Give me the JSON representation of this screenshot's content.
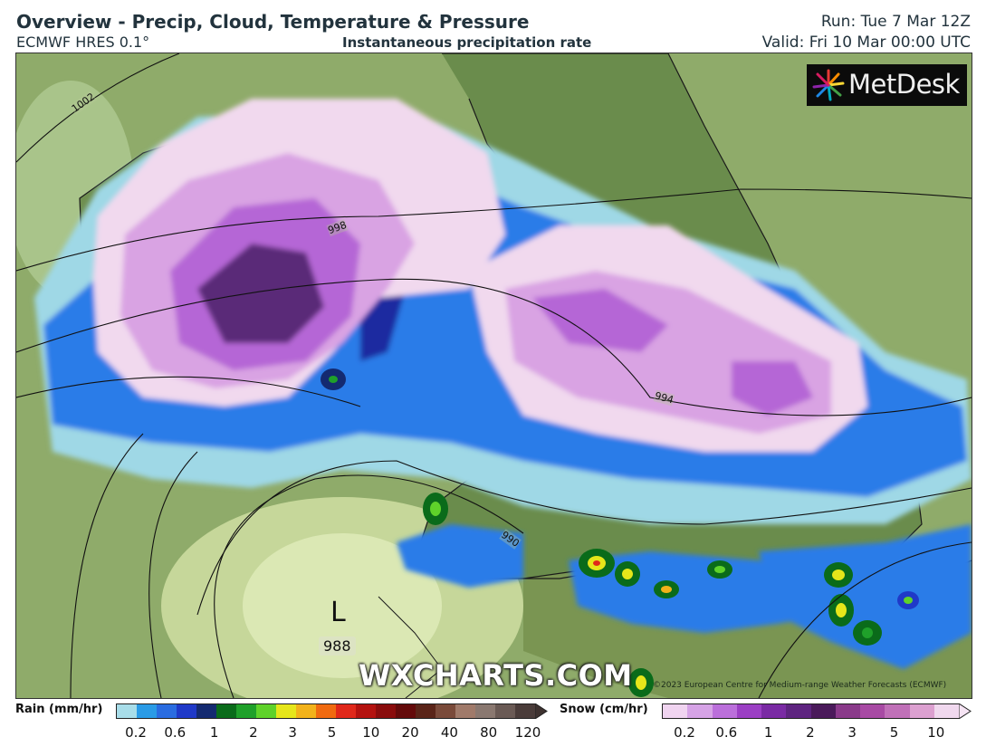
{
  "header": {
    "title": "Overview - Precip, Cloud, Temperature & Pressure",
    "model": "ECMWF HRES 0.1°",
    "field": "Instantaneous precipitation rate",
    "run": "Run: Tue 7 Mar 12Z",
    "valid": "Valid: Fri 10 Mar 00:00 UTC"
  },
  "map": {
    "logo": "MetDesk",
    "watermark": "WXCHARTS.COM",
    "copyright": "©2023 European Centre for Medium-range Weather Forecasts (ECMWF)",
    "low_letter": "L",
    "low_value": "988",
    "isobars": [
      "1002",
      "998",
      "994",
      "990"
    ],
    "colors": {
      "land": "#7b9a58",
      "sea": "#a9c08a",
      "rain_light": "#9fd8e6",
      "rain_blue": "#2a7be8",
      "rain_dark": "#1a2aa0",
      "snow_light": "#f1d9ee",
      "snow_mid": "#d9a3e3",
      "snow_purple": "#b566d6",
      "snow_dark": "#5a2a78"
    }
  },
  "legend": {
    "rain_label": "Rain (mm/hr)",
    "rain_ticks": [
      "0.2",
      "0.6",
      "1",
      "2",
      "3",
      "5",
      "10",
      "20",
      "40",
      "80",
      "120"
    ],
    "rain_colors": [
      "#a8dde9",
      "#2a9be6",
      "#2a6ce0",
      "#1f39c8",
      "#142a70",
      "#0a6b1a",
      "#1fa02a",
      "#5fd22a",
      "#e6e61a",
      "#f2b21a",
      "#f06a10",
      "#e0281a",
      "#b4120f",
      "#8a0c0c",
      "#640a0a",
      "#5a2418",
      "#7a4a3a",
      "#a07a6a",
      "#8a7870",
      "#6a5a55",
      "#4a3c3a"
    ],
    "snow_label": "Snow (cm/hr)",
    "snow_ticks": [
      "0.2",
      "0.6",
      "1",
      "2",
      "3",
      "5",
      "10"
    ],
    "snow_colors": [
      "#f0d4f0",
      "#d6a3e6",
      "#bb6fdb",
      "#9b3fc4",
      "#7a2aa4",
      "#5e2480",
      "#4a1a5a",
      "#8a3a8a",
      "#a84aa4",
      "#c070b8",
      "#dca0d0",
      "#f0d8ee"
    ]
  }
}
